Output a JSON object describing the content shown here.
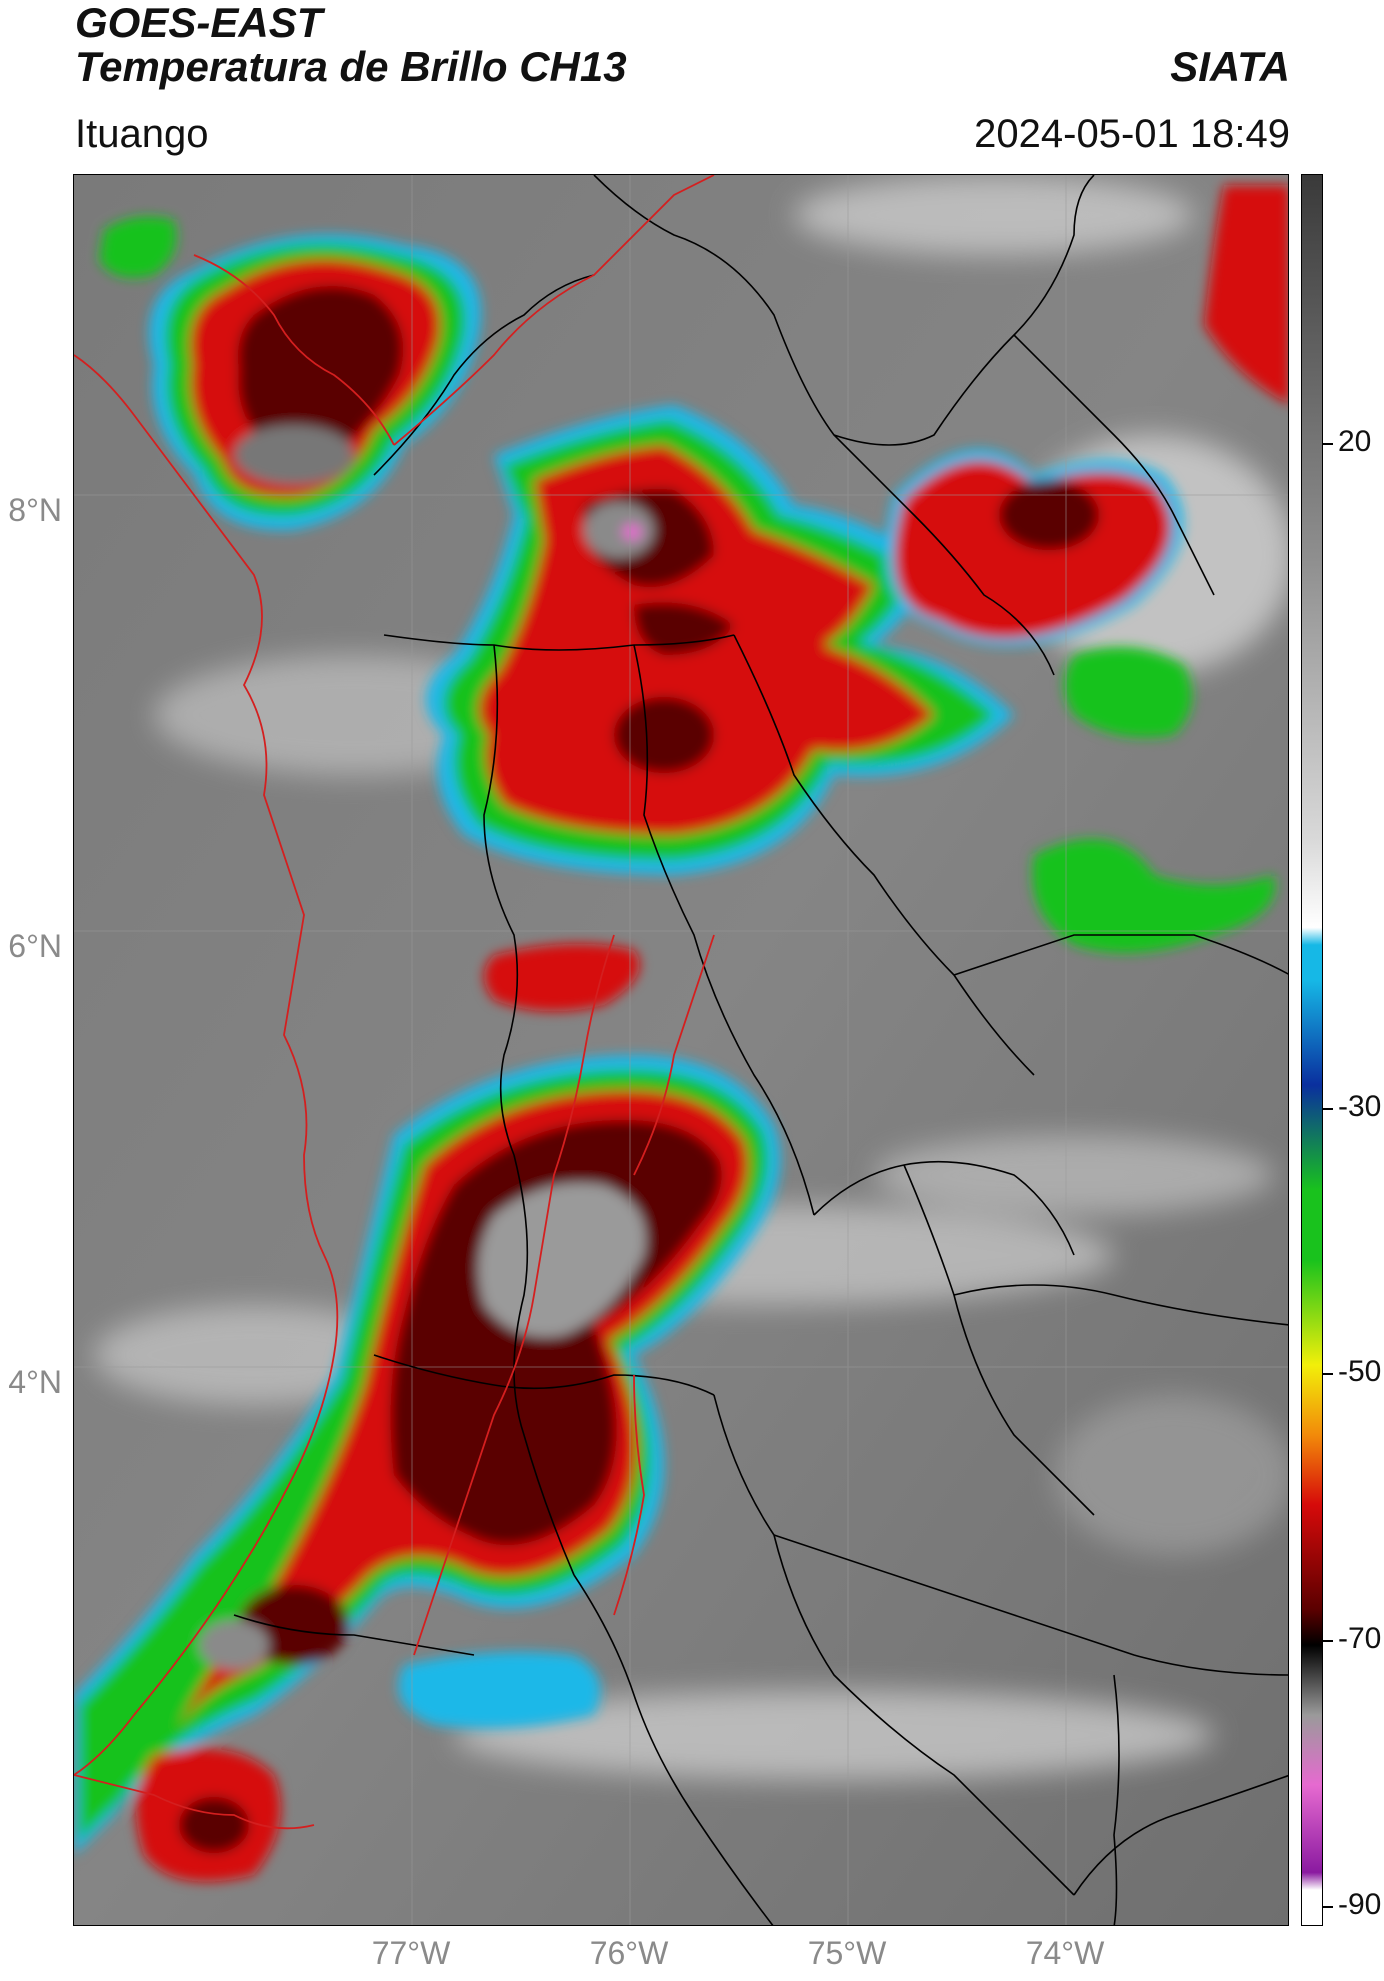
{
  "header": {
    "satellite": "GOES-EAST",
    "product": "Temperatura de Brillo CH13",
    "brand": "SIATA",
    "location": "Ituango",
    "datetime": "2024-05-01 18:49"
  },
  "map": {
    "latitude_labels": [
      "8°N",
      "6°N",
      "4°N"
    ],
    "longitude_labels": [
      "77°W",
      "76°W",
      "75°W",
      "74°W"
    ],
    "border_colors": {
      "country": "#d41f1f",
      "department": "#000000"
    }
  },
  "colorbar": {
    "range": [
      -90,
      30
    ],
    "tick_labels": [
      "20",
      "-30",
      "-50",
      "-70",
      "-90"
    ],
    "colors": {
      "warm_end": "#3a3a3a",
      "white": "#ffffff",
      "cyan": "#16b8e6",
      "blue": "#0a2f9e",
      "green": "#19c21d",
      "yellow": "#f2ef0a",
      "orange": "#f28a0a",
      "red": "#d60a0a",
      "dark_red": "#5a0000",
      "black": "#000000",
      "gray": "#9a9a9a",
      "pink": "#e66ad0",
      "purple": "#8a1aa0"
    }
  }
}
